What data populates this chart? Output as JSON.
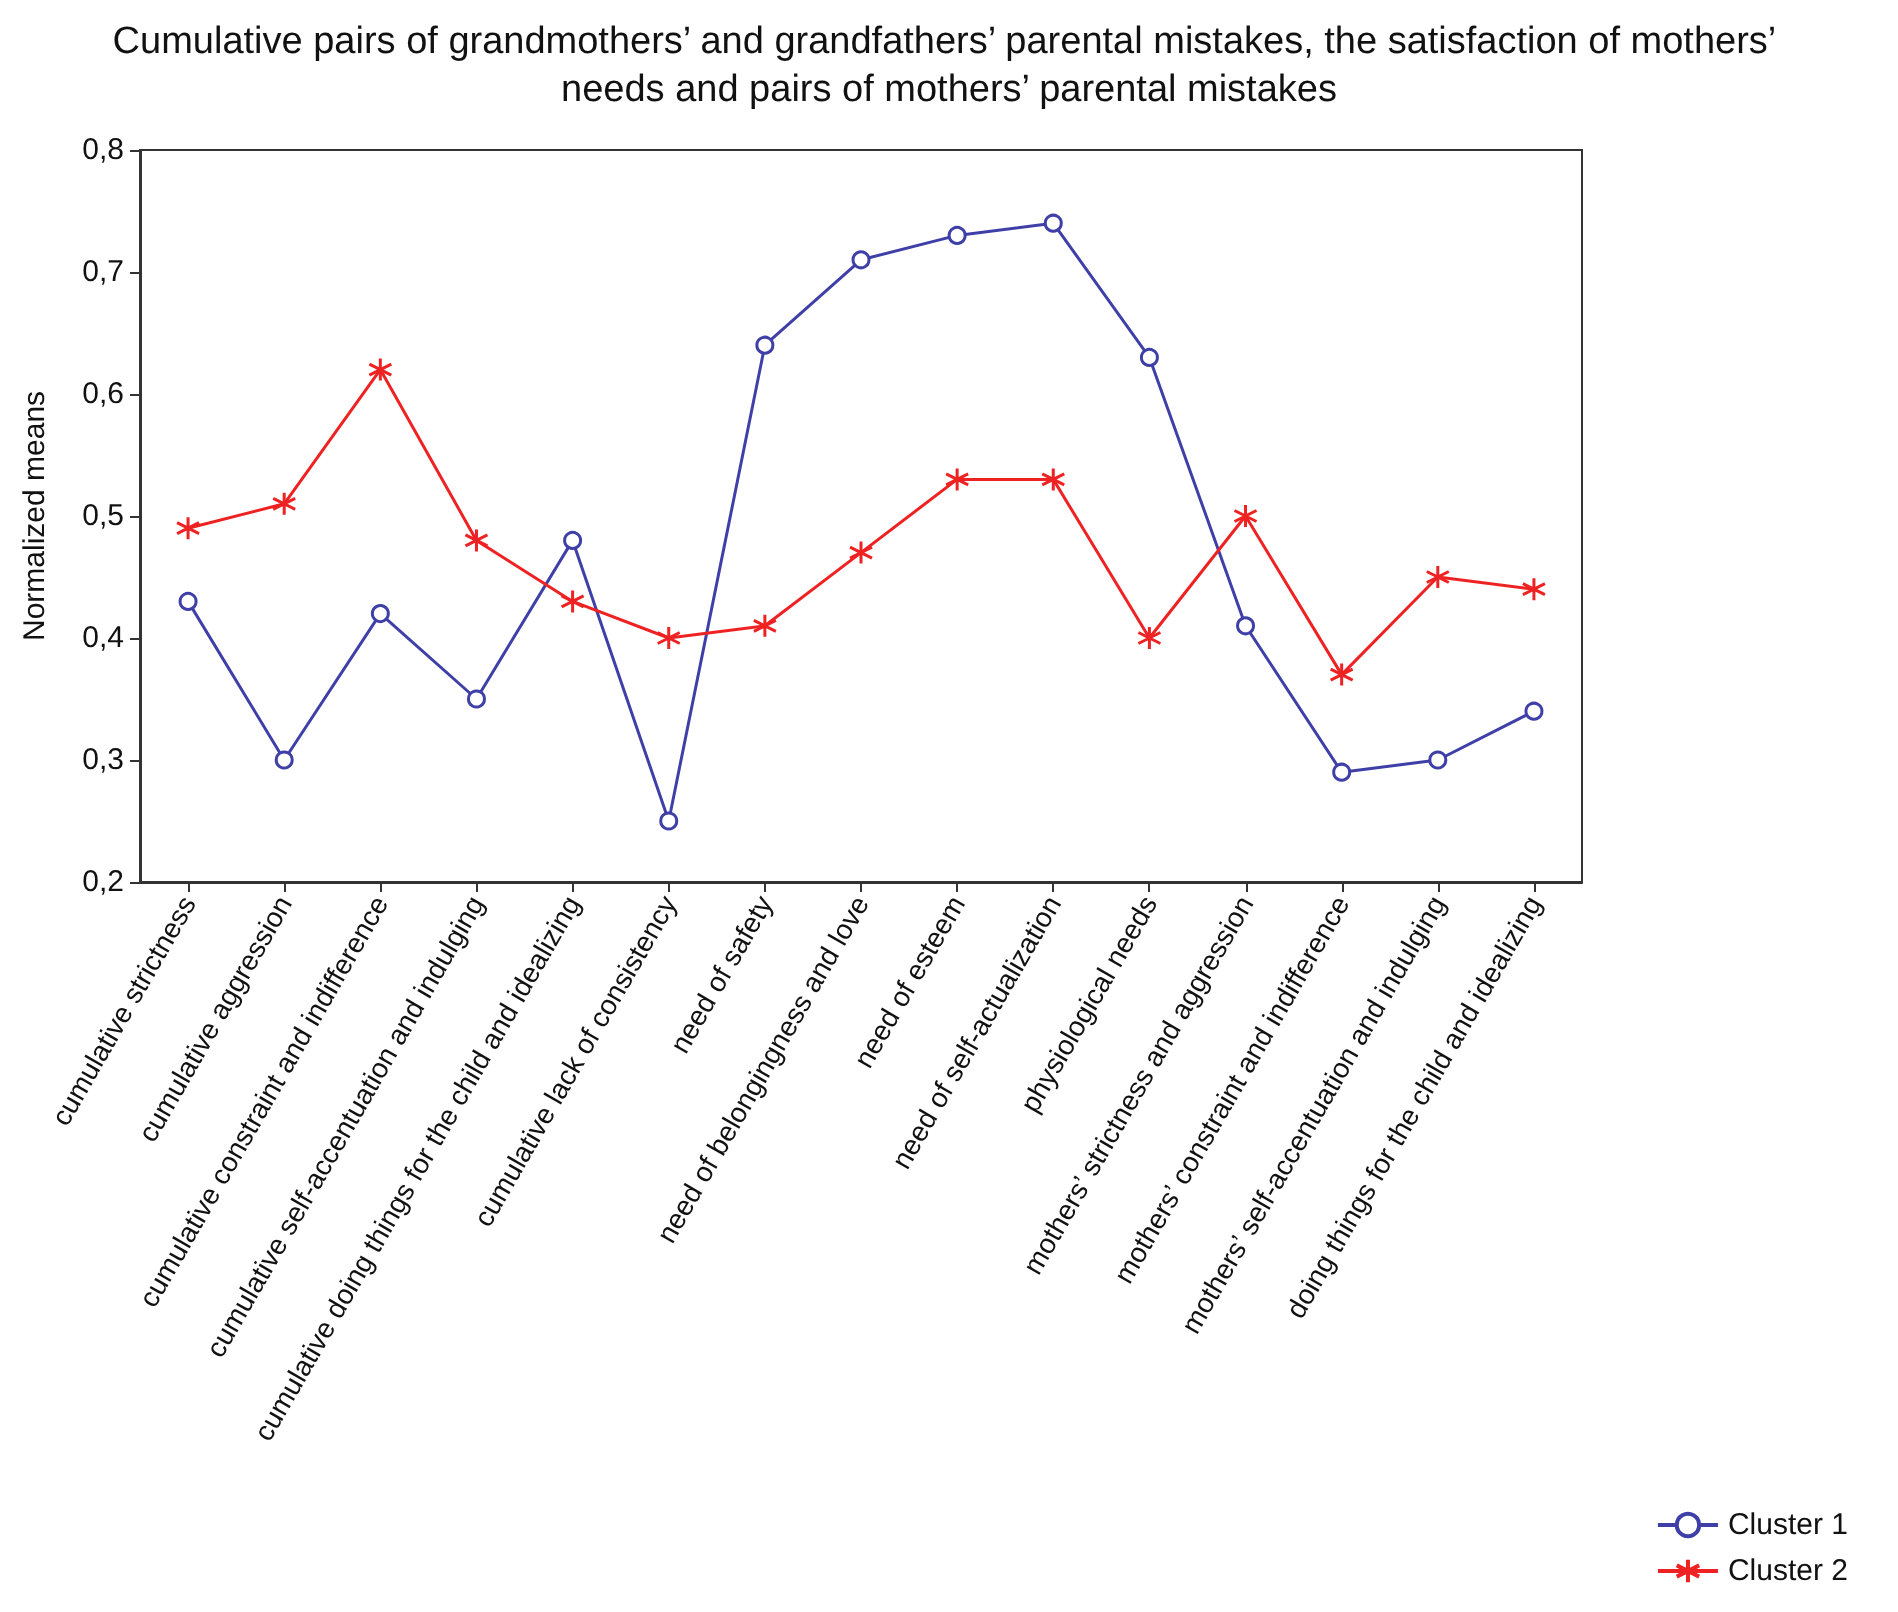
{
  "chart_data": {
    "type": "line",
    "title": "Cumulative pairs of grandmothers’ and grandfathers’ parental mistakes, the satisfaction of mothers’ needs and pairs of mothers’ parental mistakes",
    "ylabel": "Normalized means",
    "categories": [
      "cumulative strictness",
      "cumulative aggression",
      "cumulative constraint and indifference",
      "cumulative self-accentuation and indulging",
      "cumulative doing things for the child and idealizing",
      "cumulative lack of consistency",
      "need of safety",
      "need of belongingness and love",
      "need of esteem",
      "need of self-actualization",
      "physiological needs",
      "mothers’ strictness and aggression",
      "mothers’ constraint and indifference",
      "mothers’ self-accentuation and indulging",
      "doing things for the child and idealizing"
    ],
    "series": [
      {
        "name": "Cluster 1",
        "color": "#3f3fa8",
        "marker": "circle",
        "values": [
          0.43,
          0.3,
          0.42,
          0.35,
          0.48,
          0.25,
          0.64,
          0.71,
          0.73,
          0.74,
          0.63,
          0.41,
          0.29,
          0.3,
          0.34
        ]
      },
      {
        "name": "Cluster 2",
        "color": "#ee2222",
        "marker": "cross",
        "values": [
          0.49,
          0.51,
          0.62,
          0.48,
          0.43,
          0.4,
          0.41,
          0.47,
          0.53,
          0.53,
          0.4,
          0.5,
          0.37,
          0.45,
          0.44
        ]
      }
    ],
    "ylim": [
      0.2,
      0.8
    ],
    "yticks": [
      {
        "value": 0.2,
        "label": "0,2"
      },
      {
        "value": 0.3,
        "label": "0,3"
      },
      {
        "value": 0.4,
        "label": "0,4"
      },
      {
        "value": 0.5,
        "label": "0,5"
      },
      {
        "value": 0.6,
        "label": "0,6"
      },
      {
        "value": 0.7,
        "label": "0,7"
      },
      {
        "value": 0.8,
        "label": "0,8"
      }
    ],
    "grid": false,
    "legend": "bottom right",
    "line_style": "solid"
  }
}
